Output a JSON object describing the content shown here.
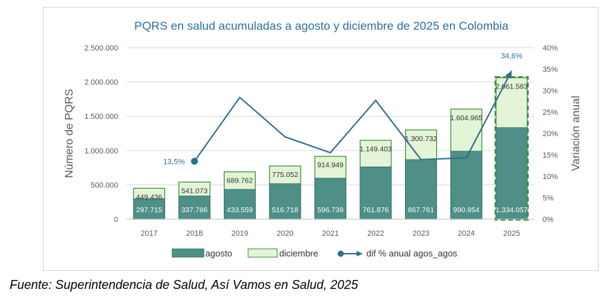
{
  "chart_data": {
    "type": "bar",
    "title": "PQRS en salud acumuladas a agosto y diciembre de 2025 en Colombia",
    "ylabel": "Número de PQRS",
    "y2label": "Variación anual",
    "categories": [
      "2017",
      "2018",
      "2019",
      "2020",
      "2021",
      "2022",
      "2023",
      "2024",
      "2025"
    ],
    "ylim": [
      0,
      2500000
    ],
    "y2lim": [
      0,
      40
    ],
    "yticks": [
      "0",
      "500.000",
      "1.000.000",
      "1.500.000",
      "2.000.000",
      "2.500.000"
    ],
    "y2ticks": [
      "0%",
      "5%",
      "10%",
      "15%",
      "20%",
      "25%",
      "30%",
      "35%",
      "40%"
    ],
    "series": [
      {
        "name": "agosto",
        "kind": "bar",
        "color": "#4e8f88",
        "values": [
          297715,
          337786,
          433559,
          516718,
          596739,
          761876,
          867761,
          990954,
          1334057
        ],
        "labels": [
          "297.715",
          "337.786",
          "433.559",
          "516.718",
          "596.739",
          "761.876",
          "867.761",
          "990.954",
          "1.334.057"
        ]
      },
      {
        "name": "diciembre",
        "kind": "bar",
        "color": "#e3f5d6",
        "values": [
          449436,
          541073,
          689762,
          775052,
          914949,
          1149403,
          1300732,
          1604965,
          2061583
        ],
        "labels": [
          "449.436",
          "541.073",
          "689.762",
          "775.052",
          "914.949",
          "1.149.403",
          "1.300.732",
          "1.604.965",
          "2.061.583"
        ]
      },
      {
        "name": "dif % anual agos_agos",
        "kind": "line",
        "axis": "right",
        "color": "#2e6e8e",
        "values": [
          null,
          13.5,
          28.4,
          19.2,
          15.5,
          27.7,
          13.9,
          14.3,
          34.6
        ]
      }
    ],
    "annotations": [
      {
        "text": "13,5%",
        "category": "2018",
        "value": 13.5
      },
      {
        "text": "34,6%",
        "category": "2025",
        "value": 34.6
      }
    ],
    "highlight_category": "2025",
    "grid": true,
    "legend_position": "bottom"
  },
  "colors": {
    "title": "#2e6e9e",
    "axis_text": "#595959",
    "grid": "#d9d9d9",
    "bar_border": "#3d8c3d",
    "highlight_border": "#3d8c3d"
  },
  "source": "Fuente: Superintendencia de Salud, Así Vamos en Salud, 2025"
}
